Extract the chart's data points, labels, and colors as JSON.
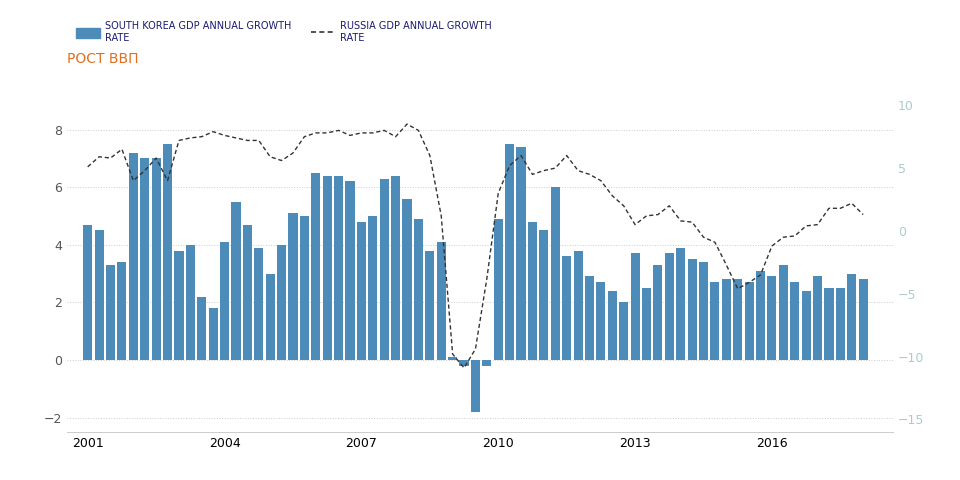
{
  "title": "РОСТ ВВП",
  "legend_korea": "SOUTH KOREA GDP ANNUAL GROWTH\nRATE",
  "legend_russia": "RUSSIA GDP ANNUAL GROWTH\nRATE",
  "korea_color": "#4d8cb8",
  "russia_color": "#333333",
  "background_color": "#ffffff",
  "grid_color": "#cccccc",
  "left_tick_color": "#555555",
  "right_tick_color": "#aacccc",
  "title_color": "#e07020",
  "ylim_left": [
    -2.5,
    9.5
  ],
  "ylim_right": [
    -16.0,
    11.5
  ],
  "xlim": [
    2000.55,
    2018.65
  ],
  "xtick_years": [
    2001,
    2004,
    2007,
    2010,
    2013,
    2016
  ],
  "left_yticks": [
    -2,
    0,
    2,
    4,
    6,
    8
  ],
  "right_yticks": [
    -15,
    -10,
    -5,
    0,
    5,
    10
  ],
  "korea_x": [
    2001.0,
    2001.25,
    2001.5,
    2001.75,
    2002.0,
    2002.25,
    2002.5,
    2002.75,
    2003.0,
    2003.25,
    2003.5,
    2003.75,
    2004.0,
    2004.25,
    2004.5,
    2004.75,
    2005.0,
    2005.25,
    2005.5,
    2005.75,
    2006.0,
    2006.25,
    2006.5,
    2006.75,
    2007.0,
    2007.25,
    2007.5,
    2007.75,
    2008.0,
    2008.25,
    2008.5,
    2008.75,
    2009.0,
    2009.25,
    2009.5,
    2009.75,
    2010.0,
    2010.25,
    2010.5,
    2010.75,
    2011.0,
    2011.25,
    2011.5,
    2011.75,
    2012.0,
    2012.25,
    2012.5,
    2012.75,
    2013.0,
    2013.25,
    2013.5,
    2013.75,
    2014.0,
    2014.25,
    2014.5,
    2014.75,
    2015.0,
    2015.25,
    2015.5,
    2015.75,
    2016.0,
    2016.25,
    2016.5,
    2016.75,
    2017.0,
    2017.25,
    2017.5,
    2017.75,
    2018.0
  ],
  "korea_values": [
    4.7,
    4.5,
    3.3,
    3.4,
    7.2,
    7.0,
    7.0,
    7.5,
    3.8,
    4.0,
    2.2,
    1.8,
    4.1,
    5.5,
    4.7,
    3.9,
    3.0,
    4.0,
    5.1,
    5.0,
    6.5,
    6.4,
    6.4,
    6.2,
    4.8,
    5.0,
    6.3,
    6.4,
    5.6,
    4.9,
    3.8,
    4.1,
    0.1,
    -0.2,
    -1.8,
    -0.2,
    4.9,
    7.5,
    7.4,
    4.8,
    4.5,
    6.0,
    3.6,
    3.8,
    2.9,
    2.7,
    2.4,
    2.0,
    3.7,
    2.5,
    3.3,
    3.7,
    3.9,
    3.5,
    3.4,
    2.7,
    2.8,
    2.8,
    2.7,
    3.1,
    2.9,
    3.3,
    2.7,
    2.4,
    2.9,
    2.5,
    2.5,
    3.0,
    2.8
  ],
  "russia_x": [
    2001.0,
    2001.25,
    2001.5,
    2001.75,
    2002.0,
    2002.25,
    2002.5,
    2002.75,
    2003.0,
    2003.25,
    2003.5,
    2003.75,
    2004.0,
    2004.25,
    2004.5,
    2004.75,
    2005.0,
    2005.25,
    2005.5,
    2005.75,
    2006.0,
    2006.25,
    2006.5,
    2006.75,
    2007.0,
    2007.25,
    2007.5,
    2007.75,
    2008.0,
    2008.25,
    2008.5,
    2008.75,
    2009.0,
    2009.25,
    2009.5,
    2009.75,
    2010.0,
    2010.25,
    2010.5,
    2010.75,
    2011.0,
    2011.25,
    2011.5,
    2011.75,
    2012.0,
    2012.25,
    2012.5,
    2012.75,
    2013.0,
    2013.25,
    2013.5,
    2013.75,
    2014.0,
    2014.25,
    2014.5,
    2014.75,
    2015.0,
    2015.25,
    2015.5,
    2015.75,
    2016.0,
    2016.25,
    2016.5,
    2016.75,
    2017.0,
    2017.25,
    2017.5,
    2017.75,
    2018.0
  ],
  "russia_values": [
    5.1,
    5.9,
    5.8,
    6.5,
    4.0,
    4.8,
    5.8,
    4.0,
    7.2,
    7.4,
    7.5,
    7.9,
    7.6,
    7.4,
    7.2,
    7.2,
    5.9,
    5.6,
    6.2,
    7.5,
    7.8,
    7.8,
    8.0,
    7.6,
    7.8,
    7.8,
    8.0,
    7.5,
    8.5,
    8.0,
    6.0,
    1.2,
    -9.8,
    -10.9,
    -9.4,
    -3.8,
    3.0,
    5.2,
    6.0,
    4.5,
    4.8,
    5.0,
    6.0,
    4.8,
    4.5,
    4.0,
    2.8,
    2.0,
    0.5,
    1.2,
    1.3,
    2.0,
    0.8,
    0.7,
    -0.5,
    -0.9,
    -2.7,
    -4.6,
    -4.1,
    -3.5,
    -1.2,
    -0.5,
    -0.4,
    0.4,
    0.5,
    1.8,
    1.8,
    2.2,
    1.3
  ]
}
